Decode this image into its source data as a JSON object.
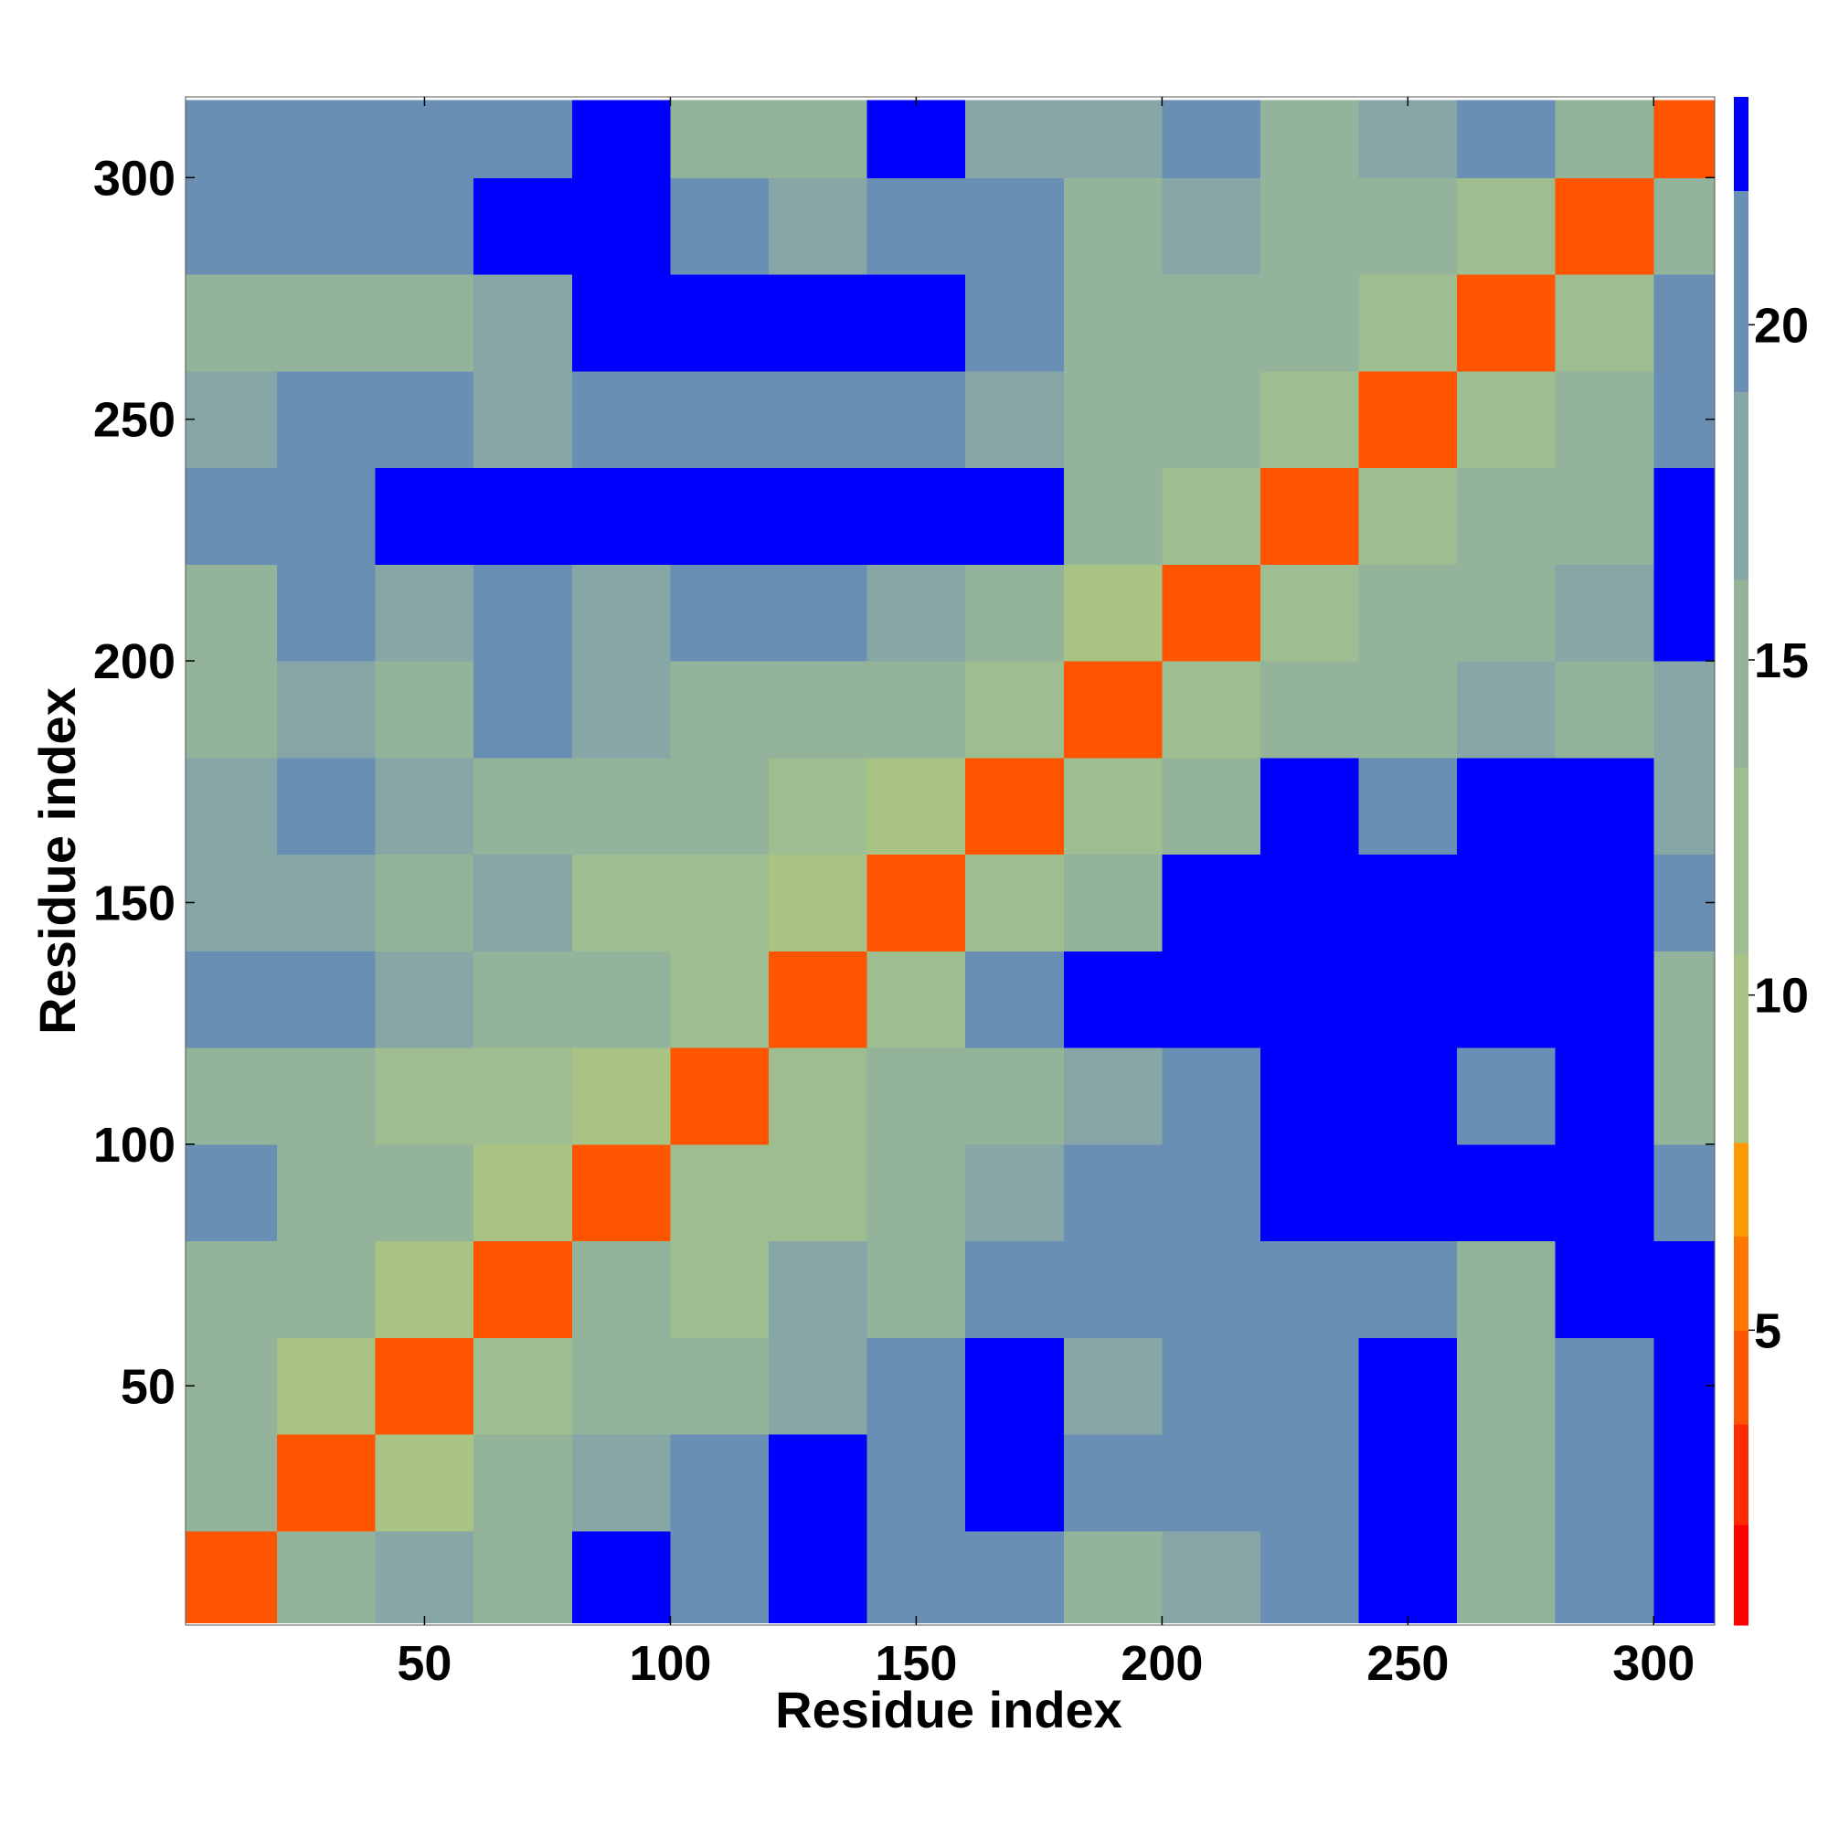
{
  "chart_data": {
    "type": "heatmap",
    "x_label": "Residue index",
    "y_label": "Residue index",
    "xlim": [
      1.4,
      312.4
    ],
    "ylim": [
      0.5,
      316.7
    ],
    "xticks": [
      50,
      100,
      150,
      200,
      250,
      300
    ],
    "yticks": [
      50,
      100,
      150,
      200,
      250,
      300
    ],
    "bins": [
      1,
      20,
      40,
      60,
      80,
      100,
      120,
      140,
      160,
      180,
      200,
      220,
      240,
      260,
      280,
      300,
      316
    ],
    "z": [
      [
        4,
        14,
        18,
        16,
        24,
        20,
        24,
        20,
        20,
        16,
        18,
        20,
        24,
        14,
        22,
        24
      ],
      [
        14,
        4,
        10,
        14,
        18,
        20,
        24,
        22,
        24,
        20,
        20,
        22,
        24,
        14,
        20,
        24
      ],
      [
        16,
        10,
        4,
        12,
        14,
        16,
        18,
        20,
        24,
        18,
        20,
        22,
        24,
        16,
        22,
        24
      ],
      [
        14,
        14,
        10,
        4,
        14,
        12,
        18,
        16,
        22,
        20,
        22,
        22,
        22,
        16,
        24,
        24
      ],
      [
        20,
        16,
        14,
        10,
        4,
        12,
        12,
        16,
        18,
        20,
        22,
        24,
        24,
        24,
        24,
        22
      ],
      [
        16,
        14,
        12,
        12,
        10,
        4,
        12,
        14,
        16,
        18,
        20,
        24,
        24,
        22,
        24,
        14
      ],
      [
        22,
        22,
        18,
        16,
        16,
        12,
        4,
        12,
        20,
        24,
        24,
        24,
        24,
        24,
        24,
        16
      ],
      [
        18,
        18,
        14,
        18,
        12,
        12,
        10,
        4,
        12,
        14,
        24,
        24,
        24,
        24,
        24,
        20
      ],
      [
        18,
        22,
        18,
        16,
        14,
        14,
        12,
        8,
        4,
        12,
        16,
        24,
        20,
        24,
        24,
        18
      ],
      [
        14,
        18,
        16,
        20,
        18,
        16,
        16,
        14,
        12,
        4,
        12,
        14,
        16,
        18,
        14,
        18
      ],
      [
        16,
        20,
        18,
        22,
        18,
        20,
        20,
        18,
        14,
        8,
        4,
        12,
        14,
        16,
        18,
        24
      ],
      [
        22,
        22,
        24,
        24,
        24,
        24,
        24,
        24,
        24,
        16,
        12,
        4,
        12,
        14,
        16,
        24
      ],
      [
        18,
        20,
        22,
        18,
        22,
        20,
        22,
        22,
        18,
        14,
        14,
        12,
        4,
        12,
        16,
        22
      ],
      [
        14,
        14,
        14,
        18,
        24,
        24,
        24,
        24,
        20,
        14,
        16,
        14,
        12,
        4,
        12,
        20
      ],
      [
        22,
        20,
        22,
        24,
        24,
        20,
        18,
        22,
        20,
        14,
        18,
        16,
        16,
        12,
        4,
        14
      ],
      [
        22,
        22,
        20,
        20,
        24,
        16,
        14,
        24,
        18,
        18,
        22,
        16,
        18,
        20,
        14,
        4
      ]
    ],
    "zlim": [
      0.6,
      23.4
    ],
    "zticks": [
      5,
      10,
      15,
      20
    ],
    "levels": [
      0.6,
      2.1,
      3.6,
      5.0,
      6.4,
      7.8,
      10.6,
      13.4,
      16.2,
      19.0,
      22.0,
      23.4
    ],
    "colors": [
      "#ff0000",
      "#ff2a00",
      "#ff5500",
      "#ff7700",
      "#ff9900",
      "#a9c384",
      "#9ebd90",
      "#93b49a",
      "#86a7a6",
      "#6a8fb4",
      "#0000ff"
    ]
  }
}
